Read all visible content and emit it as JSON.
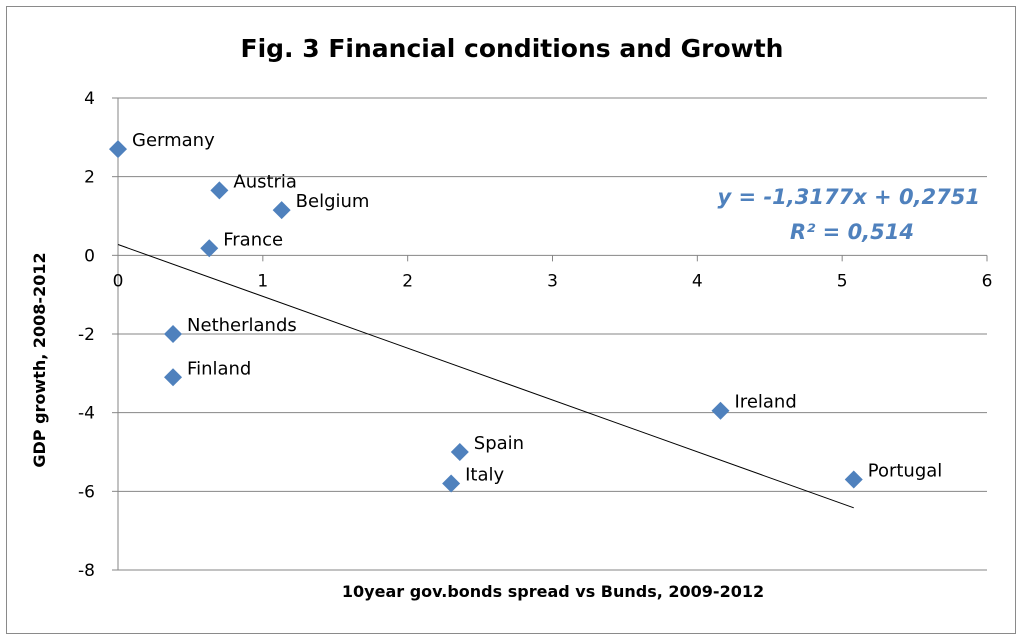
{
  "chart_data": {
    "type": "scatter",
    "title": "Fig. 3 Financial conditions and Growth",
    "xlabel": "10year gov.bonds spread vs Bunds, 2009-2012",
    "ylabel": "GDP growth, 2008-2012",
    "xlim": [
      0,
      6
    ],
    "ylim": [
      -8,
      4
    ],
    "xticks": [
      "0",
      "1",
      "2",
      "3",
      "4",
      "5",
      "6"
    ],
    "yticks": [
      "4",
      "2",
      "0",
      "-2",
      "-4",
      "-6",
      "-8"
    ],
    "grid": "horizontal",
    "marker_color": "#4f81bd",
    "points": [
      {
        "label": "Germany",
        "x": 0.0,
        "y": 2.7
      },
      {
        "label": "Austria",
        "x": 0.7,
        "y": 1.65
      },
      {
        "label": "Belgium",
        "x": 1.13,
        "y": 1.15
      },
      {
        "label": "France",
        "x": 0.63,
        "y": 0.18
      },
      {
        "label": "Netherlands",
        "x": 0.38,
        "y": -2.0
      },
      {
        "label": "Finland",
        "x": 0.38,
        "y": -3.1
      },
      {
        "label": "Spain",
        "x": 2.36,
        "y": -5.0
      },
      {
        "label": "Italy",
        "x": 2.3,
        "y": -5.8
      },
      {
        "label": "Ireland",
        "x": 4.16,
        "y": -3.95
      },
      {
        "label": "Portugal",
        "x": 5.08,
        "y": -5.7
      }
    ],
    "trendline": {
      "slope": -1.3177,
      "intercept": 0.2751,
      "x_range": [
        0,
        5.08
      ],
      "equation": "y = -1,3177x + 0,2751",
      "r_squared": "R² = 0,514",
      "color": "#4f81bd"
    }
  }
}
